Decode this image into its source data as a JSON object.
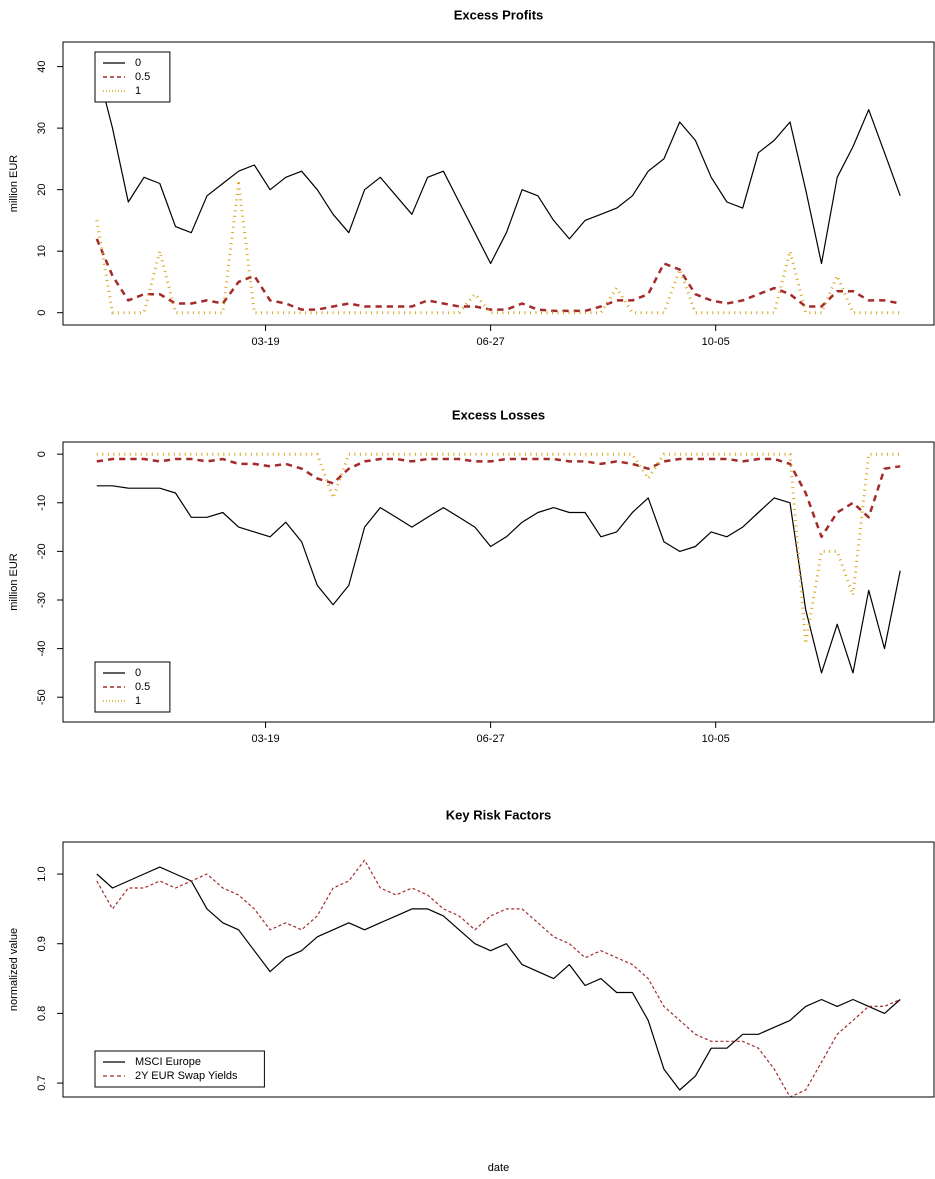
{
  "chart_data": [
    {
      "type": "line",
      "title": "Excess Profits",
      "ylabel": "million EUR",
      "x": [
        3,
        10,
        17,
        24,
        31,
        38,
        45,
        52,
        59,
        66,
        73,
        80,
        87,
        94,
        101,
        108,
        115,
        122,
        129,
        136,
        143,
        150,
        157,
        164,
        171,
        178,
        185,
        192,
        199,
        206,
        213,
        220,
        227,
        234,
        241,
        248,
        255,
        262,
        269,
        276,
        283,
        290,
        297,
        304,
        311,
        318,
        325,
        332,
        339,
        346,
        353,
        360
      ],
      "xlim": [
        -12,
        375
      ],
      "xticks": [
        {
          "value": 78,
          "label": "03-19"
        },
        {
          "value": 178,
          "label": "06-27"
        },
        {
          "value": 278,
          "label": "10-05"
        }
      ],
      "ylim": [
        -2,
        44
      ],
      "yticks": [
        0,
        10,
        20,
        30,
        40
      ],
      "legend": "top-left",
      "series": [
        {
          "name": "0",
          "color": "#000000",
          "linestyle": "solid",
          "linewidth": 1.2,
          "values": [
            40,
            30,
            18,
            22,
            21,
            14,
            13,
            19,
            21,
            23,
            24,
            20,
            22,
            23,
            20,
            16,
            13,
            20,
            22,
            19,
            16,
            22,
            23,
            18,
            13,
            8,
            13,
            20,
            19,
            15,
            12,
            15,
            16,
            17,
            19,
            23,
            25,
            31,
            28,
            22,
            18,
            17,
            26,
            28,
            31,
            20,
            8,
            22,
            27,
            33,
            26,
            19
          ]
        },
        {
          "name": "0.5",
          "color": "#a52a2a",
          "linestyle": "dashed",
          "linewidth": 2.5,
          "values": [
            12,
            6,
            2,
            3,
            3,
            1.5,
            1.5,
            2,
            1.5,
            5,
            6,
            2,
            1.5,
            0.5,
            0.5,
            1,
            1.5,
            1,
            1,
            1,
            1,
            2,
            1.5,
            1,
            1,
            0.5,
            0.5,
            1.5,
            0.5,
            0.3,
            0.3,
            0.3,
            1,
            2,
            2,
            3,
            8,
            7,
            3,
            2,
            1.5,
            2,
            3,
            4,
            3,
            1,
            1,
            3.5,
            3.5,
            2,
            2,
            1.5
          ]
        },
        {
          "name": "1",
          "color": "#daa520",
          "linestyle": "dotted",
          "linewidth": 3,
          "values": [
            15,
            0,
            0,
            0,
            10,
            0,
            0,
            0,
            0,
            21,
            0,
            0,
            0,
            0,
            0,
            0,
            0,
            0,
            0,
            0,
            0,
            0,
            0,
            0,
            3,
            0,
            0,
            0,
            0,
            0,
            0,
            0,
            0,
            4,
            0,
            0,
            0,
            7,
            0,
            0,
            0,
            0,
            0,
            0,
            10,
            0,
            0,
            6,
            0,
            0,
            0,
            0
          ]
        }
      ]
    },
    {
      "type": "line",
      "title": "Excess Losses",
      "ylabel": "million EUR",
      "x": [
        3,
        10,
        17,
        24,
        31,
        38,
        45,
        52,
        59,
        66,
        73,
        80,
        87,
        94,
        101,
        108,
        115,
        122,
        129,
        136,
        143,
        150,
        157,
        164,
        171,
        178,
        185,
        192,
        199,
        206,
        213,
        220,
        227,
        234,
        241,
        248,
        255,
        262,
        269,
        276,
        283,
        290,
        297,
        304,
        311,
        318,
        325,
        332,
        339,
        346,
        353,
        360
      ],
      "xlim": [
        -12,
        375
      ],
      "xticks": [
        {
          "value": 78,
          "label": "03-19"
        },
        {
          "value": 178,
          "label": "06-27"
        },
        {
          "value": 278,
          "label": "10-05"
        }
      ],
      "ylim": [
        -55.1,
        2.5
      ],
      "yticks": [
        -50,
        -40,
        -30,
        -20,
        -10,
        0
      ],
      "legend": "bottom-left",
      "series": [
        {
          "name": "0",
          "color": "#000000",
          "linestyle": "solid",
          "linewidth": 1.2,
          "values": [
            -6.5,
            -6.5,
            -7,
            -7,
            -7,
            -8,
            -13,
            -13,
            -12,
            -15,
            -16,
            -17,
            -14,
            -18,
            -27,
            -31,
            -27,
            -15,
            -11,
            -13,
            -15,
            -13,
            -11,
            -13,
            -15,
            -19,
            -17,
            -14,
            -12,
            -11,
            -12,
            -12,
            -17,
            -16,
            -12,
            -9,
            -18,
            -20,
            -19,
            -16,
            -17,
            -15,
            -12,
            -9,
            -10,
            -32,
            -45,
            -35,
            -45,
            -28,
            -40,
            -24
          ]
        },
        {
          "name": "0.5",
          "color": "#a52a2a",
          "linestyle": "dashed",
          "linewidth": 2.5,
          "values": [
            -1.5,
            -1,
            -1,
            -1,
            -1.5,
            -1,
            -1,
            -1.5,
            -1,
            -2,
            -2,
            -2.5,
            -2,
            -3,
            -5,
            -6,
            -3,
            -1.5,
            -1,
            -1,
            -1.5,
            -1,
            -1,
            -1,
            -1.5,
            -1.5,
            -1,
            -1,
            -1,
            -1,
            -1.5,
            -1.5,
            -2,
            -1.5,
            -2,
            -3,
            -1.5,
            -1,
            -1,
            -1,
            -1,
            -1.5,
            -1,
            -1,
            -2,
            -8,
            -17,
            -12,
            -10,
            -13,
            -3,
            -2.5
          ]
        },
        {
          "name": "1",
          "color": "#daa520",
          "linestyle": "dotted",
          "linewidth": 3,
          "values": [
            0,
            0,
            0,
            0,
            0,
            0,
            0,
            0,
            0,
            0,
            0,
            0,
            0,
            0,
            0,
            -9,
            0,
            0,
            0,
            0,
            0,
            0,
            0,
            0,
            0,
            0,
            0,
            0,
            0,
            0,
            0,
            0,
            0,
            0,
            0,
            -5,
            0,
            0,
            0,
            0,
            0,
            0,
            0,
            0,
            0,
            -39,
            -20,
            -20,
            -29,
            0,
            0,
            0
          ]
        }
      ]
    },
    {
      "type": "line",
      "title": "Key Risk Factors",
      "ylabel": "normalized value",
      "xlabel": "date",
      "x": [
        3,
        10,
        17,
        24,
        31,
        38,
        45,
        52,
        59,
        66,
        73,
        80,
        87,
        94,
        101,
        108,
        115,
        122,
        129,
        136,
        143,
        150,
        157,
        164,
        171,
        178,
        185,
        192,
        199,
        206,
        213,
        220,
        227,
        234,
        241,
        248,
        255,
        262,
        269,
        276,
        283,
        290,
        297,
        304,
        311,
        318,
        325,
        332,
        339,
        346,
        353,
        360
      ],
      "xlim": [
        -12,
        375
      ],
      "ylim": [
        0.68,
        1.046
      ],
      "yticks": [
        0.7,
        0.8,
        0.9,
        {
          "value": 1,
          "label": "1.0"
        }
      ],
      "legend": "bottom-left",
      "series": [
        {
          "name": "MSCI Europe",
          "color": "#000000",
          "linestyle": "solid",
          "linewidth": 1.2,
          "values": [
            1.0,
            0.98,
            0.99,
            1.0,
            1.01,
            1.0,
            0.99,
            0.95,
            0.93,
            0.92,
            0.89,
            0.86,
            0.88,
            0.89,
            0.91,
            0.92,
            0.93,
            0.92,
            0.93,
            0.94,
            0.95,
            0.95,
            0.94,
            0.92,
            0.9,
            0.89,
            0.9,
            0.87,
            0.86,
            0.85,
            0.87,
            0.84,
            0.85,
            0.83,
            0.83,
            0.79,
            0.72,
            0.69,
            0.71,
            0.75,
            0.75,
            0.77,
            0.77,
            0.78,
            0.79,
            0.81,
            0.82,
            0.81,
            0.82,
            0.81,
            0.8,
            0.82
          ]
        },
        {
          "name": "2Y EUR Swap Yields",
          "color": "#a52a2a",
          "linestyle": "dashed",
          "linewidth": 1.2,
          "values": [
            0.99,
            0.95,
            0.98,
            0.98,
            0.99,
            0.98,
            0.99,
            1.0,
            0.98,
            0.97,
            0.95,
            0.92,
            0.93,
            0.92,
            0.94,
            0.98,
            0.99,
            1.02,
            0.98,
            0.97,
            0.98,
            0.97,
            0.95,
            0.94,
            0.92,
            0.94,
            0.95,
            0.95,
            0.93,
            0.91,
            0.9,
            0.88,
            0.89,
            0.88,
            0.87,
            0.85,
            0.81,
            0.79,
            0.77,
            0.76,
            0.76,
            0.76,
            0.75,
            0.72,
            0.68,
            0.69,
            0.73,
            0.77,
            0.79,
            0.81,
            0.81,
            0.82
          ]
        }
      ]
    }
  ]
}
